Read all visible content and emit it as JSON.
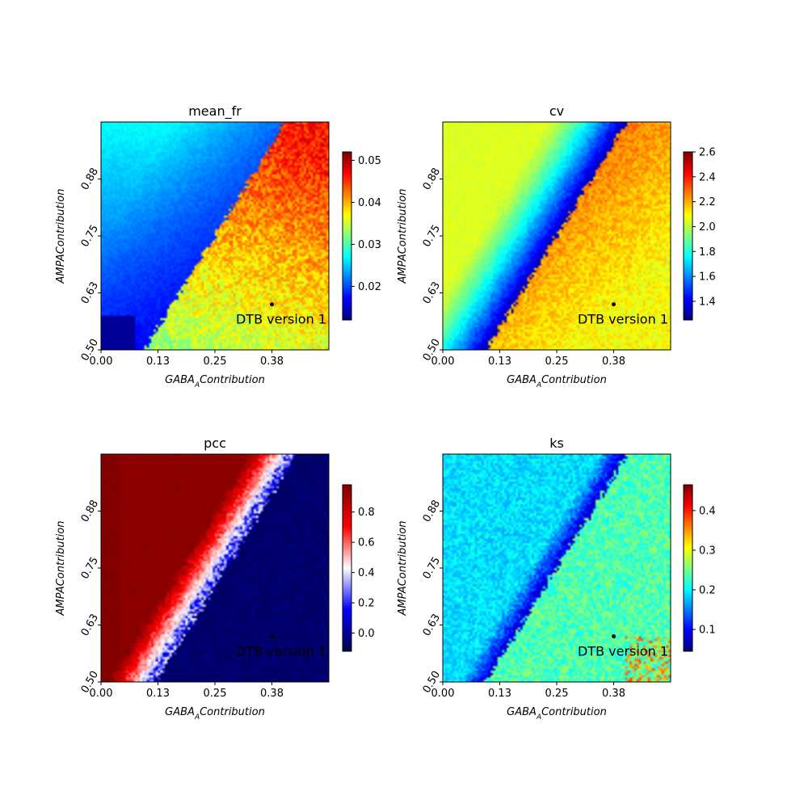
{
  "chart_data": [
    {
      "type": "heatmap",
      "title": "mean_fr",
      "xlabel": "GABA_A Contribution",
      "ylabel": "AMPA Contribution",
      "xticks": [
        "0.00",
        "0.13",
        "0.25",
        "0.38"
      ],
      "yticks": [
        "0.50",
        "0.63",
        "0.75",
        "0.88"
      ],
      "xlim": [
        0.0,
        0.5
      ],
      "ylim": [
        0.5,
        1.0
      ],
      "colormap": "jet",
      "colorbar": {
        "min": 0.012,
        "max": 0.052,
        "ticks": [
          "0.02",
          "0.03",
          "0.04",
          "0.05"
        ],
        "tick_values": [
          0.02,
          0.03,
          0.04,
          0.05
        ]
      },
      "marker": {
        "x": 0.38,
        "y": 0.6,
        "label": "DTB version 1"
      },
      "regions": {
        "left_low": 0.016,
        "left_high": 0.027,
        "right_low": 0.032,
        "right_high": 0.046
      }
    },
    {
      "type": "heatmap",
      "title": "cv",
      "xlabel": "GABA_A Contribution",
      "ylabel": "AMPA Contribution",
      "xticks": [
        "0.00",
        "0.13",
        "0.25",
        "0.38"
      ],
      "yticks": [
        "0.50",
        "0.63",
        "0.75",
        "0.88"
      ],
      "xlim": [
        0.0,
        0.5
      ],
      "ylim": [
        0.5,
        1.0
      ],
      "colormap": "jet",
      "colorbar": {
        "min": 1.25,
        "max": 2.6,
        "ticks": [
          "1.4",
          "1.6",
          "1.8",
          "2.0",
          "2.2",
          "2.4",
          "2.6"
        ],
        "tick_values": [
          1.4,
          1.6,
          1.8,
          2.0,
          2.2,
          2.4,
          2.6
        ]
      },
      "marker": {
        "x": 0.38,
        "y": 0.6,
        "label": "DTB version 1"
      },
      "regions": {
        "left_low": 1.3,
        "left_high": 2.05,
        "right_low": 2.0,
        "right_high": 2.35
      }
    },
    {
      "type": "heatmap",
      "title": "pcc",
      "xlabel": "GABA_A Contribution",
      "ylabel": "AMPA Contribution",
      "xticks": [
        "0.00",
        "0.13",
        "0.25",
        "0.38"
      ],
      "yticks": [
        "0.50",
        "0.63",
        "0.75",
        "0.88"
      ],
      "xlim": [
        0.0,
        0.5
      ],
      "ylim": [
        0.5,
        1.0
      ],
      "colormap": "seismic",
      "colorbar": {
        "min": -0.12,
        "max": 0.98,
        "ticks": [
          "0.0",
          "0.2",
          "0.4",
          "0.6",
          "0.8"
        ],
        "tick_values": [
          0.0,
          0.2,
          0.4,
          0.6,
          0.8
        ]
      },
      "marker": {
        "x": 0.38,
        "y": 0.6,
        "label": "DTB version 1"
      },
      "regions": {
        "left_low": 0.5,
        "left_high": 0.97,
        "right_low": -0.1,
        "right_high": -0.05
      }
    },
    {
      "type": "heatmap",
      "title": "ks",
      "xlabel": "GABA_A Contribution",
      "ylabel": "AMPA Contribution",
      "xticks": [
        "0.00",
        "0.13",
        "0.25",
        "0.38"
      ],
      "yticks": [
        "0.50",
        "0.63",
        "0.75",
        "0.88"
      ],
      "xlim": [
        0.0,
        0.5
      ],
      "ylim": [
        0.5,
        1.0
      ],
      "colormap": "jet",
      "colorbar": {
        "min": 0.045,
        "max": 0.465,
        "ticks": [
          "0.1",
          "0.2",
          "0.3",
          "0.4"
        ],
        "tick_values": [
          0.1,
          0.2,
          0.3,
          0.4
        ]
      },
      "marker": {
        "x": 0.38,
        "y": 0.6,
        "label": "DTB version 1"
      },
      "regions": {
        "left_low": 0.07,
        "left_high": 0.19,
        "right_low": 0.2,
        "right_high": 0.27
      }
    }
  ]
}
